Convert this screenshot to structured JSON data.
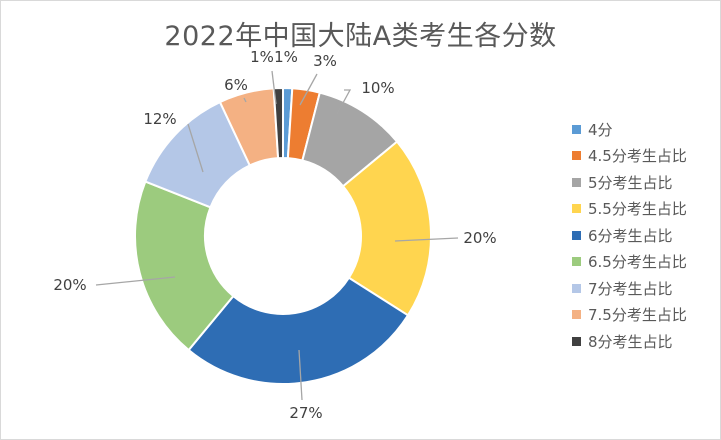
{
  "chart_data": {
    "type": "pie",
    "title": "2022年中国大陆A类考生各分数",
    "donut": true,
    "legend_position": "right",
    "categories": [
      "4分",
      "4.5分考生占比",
      "5分考生占比",
      "5.5分考生占比",
      "6分考生占比",
      "6.5分考生占比",
      "7分考生占比",
      "7.5分考生占比",
      "8分考生占比"
    ],
    "values": [
      1,
      3,
      10,
      20,
      27,
      20,
      12,
      6,
      1
    ],
    "data_labels": [
      "1%",
      "3%",
      "10%",
      "20%",
      "27%",
      "20%",
      "12%",
      "6%",
      "1%"
    ],
    "colors": [
      "#5b9bd5",
      "#ed7d31",
      "#a5a5a5",
      "#ffd54f",
      "#2e6db4",
      "#9ccb7e",
      "#b4c7e7",
      "#f4b183",
      "#404040"
    ]
  }
}
